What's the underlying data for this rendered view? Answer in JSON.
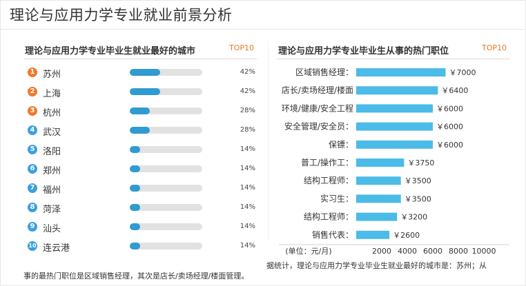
{
  "page": {
    "title": "理论与应用力学专业就业前景分析"
  },
  "left_panel": {
    "title": "理论与应用力学专业毕业生就业最好的城市",
    "badge": "TOP10",
    "items": [
      {
        "rank": "1",
        "city": "苏州",
        "percent_label": "42%",
        "value": 42
      },
      {
        "rank": "2",
        "city": "上海",
        "percent_label": "42%",
        "value": 42
      },
      {
        "rank": "3",
        "city": "杭州",
        "percent_label": "28%",
        "value": 28
      },
      {
        "rank": "4",
        "city": "武汉",
        "percent_label": "28%",
        "value": 28
      },
      {
        "rank": "5",
        "city": "洛阳",
        "percent_label": "14%",
        "value": 14
      },
      {
        "rank": "6",
        "city": "郑州",
        "percent_label": "14%",
        "value": 14
      },
      {
        "rank": "7",
        "city": "福州",
        "percent_label": "14%",
        "value": 14
      },
      {
        "rank": "8",
        "city": "菏泽",
        "percent_label": "14%",
        "value": 14
      },
      {
        "rank": "9",
        "city": "汕头",
        "percent_label": "14%",
        "value": 14
      },
      {
        "rank": "10",
        "city": "连云港",
        "percent_label": "14%",
        "value": 14
      }
    ]
  },
  "right_panel": {
    "title": "理论与应用力学专业毕业生从事的热门职位",
    "badge": "TOP10"
  },
  "chart_data": {
    "type": "bar",
    "orientation": "horizontal",
    "categories": [
      "区域销售经理：",
      "店长/卖场经理/楼面",
      "环境/健康/安全工程",
      "安全管理/安全员：",
      "保镖：",
      "普工/操作工：",
      "结构工程师：",
      "实习生：",
      "结构工程师：",
      "销售代表："
    ],
    "values": [
      7000,
      6400,
      6000,
      6000,
      6000,
      3750,
      3500,
      3500,
      3200,
      2600
    ],
    "value_labels": [
      "￥7000",
      "￥6400",
      "￥6000",
      "￥6000",
      "￥6000",
      "￥3750",
      "￥3500",
      "￥3500",
      "￥3200",
      "￥2600"
    ],
    "xlabel": "(单位：元/月)",
    "x_ticks": [
      "2000",
      "4000",
      "6000",
      "8000",
      "10000"
    ],
    "x_tick_values": [
      2000,
      4000,
      6000,
      8000,
      10000
    ],
    "xlim": [
      0,
      10000
    ],
    "bar_color": "#4bbbe8",
    "grid": false
  },
  "footer": {
    "line1": "据统计，理论与应用力学专业毕业生就业最好的城市是：苏州；从",
    "line2": "事的最热门职位是区域销售经理，其次是店长/卖场经理/楼面管理。"
  },
  "colors": {
    "bar_fill": "#2f9bd0",
    "track": "#e2e2e2",
    "badge_hot": "#f0782a",
    "badge_cool": "#3aa0de",
    "accent": "#e87b2c"
  }
}
